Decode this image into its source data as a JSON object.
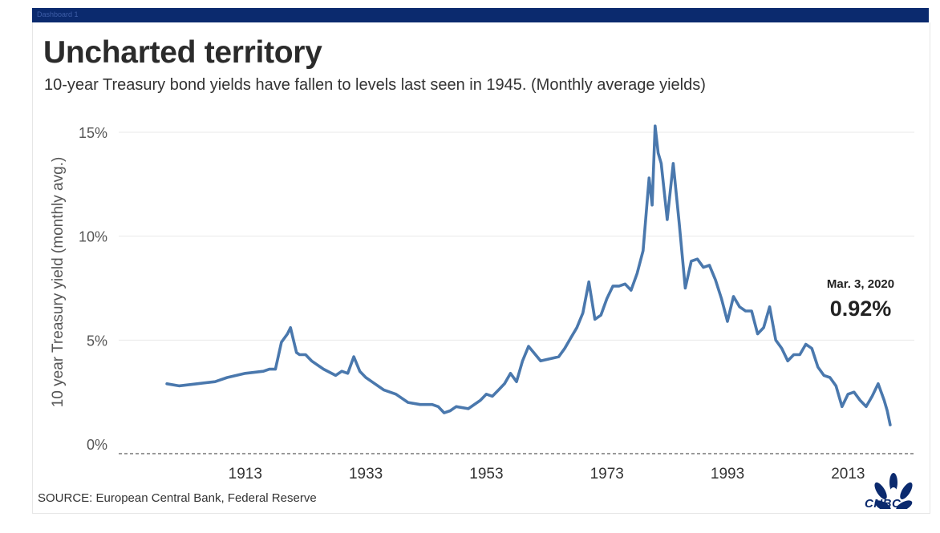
{
  "dashboard_label": "Dashboard 1",
  "header": {
    "title": "Uncharted territory",
    "subtitle": "10-year Treasury bond yields have fallen to levels last seen in 1945. (Monthly average yields)"
  },
  "source": "SOURCE: European Central Bank, Federal Reserve",
  "logo": {
    "text": "CNBC"
  },
  "colors": {
    "line": "#4a78ad",
    "topbar": "#0b2a6e",
    "grid": "#e9e9e9"
  },
  "chart_data": {
    "type": "line",
    "title": "Uncharted territory",
    "ylabel": "10 year Treasury yield (monthly avg.)",
    "xlabel": "",
    "xlim": [
      1892,
      2024
    ],
    "ylim": [
      0,
      16
    ],
    "x_ticks": [
      1913,
      1933,
      1953,
      1973,
      1993,
      2013
    ],
    "x_tick_labels": [
      "1913",
      "1933",
      "1953",
      "1973",
      "1993",
      "2013"
    ],
    "y_ticks": [
      0,
      5,
      10,
      15
    ],
    "y_tick_labels": [
      "0%",
      "5%",
      "10%",
      "15%"
    ],
    "annotation": {
      "date": "Mar. 3, 2020",
      "value": "0.92%"
    },
    "series": [
      {
        "name": "10-year Treasury yield",
        "x": [
          1900,
          1902,
          1905,
          1908,
          1910,
          1913,
          1916,
          1917,
          1918,
          1919,
          1920,
          1920.5,
          1921,
          1921.5,
          1922,
          1923,
          1924,
          1925,
          1926,
          1928,
          1929,
          1930,
          1931,
          1932,
          1933,
          1934,
          1936,
          1938,
          1940,
          1942,
          1944,
          1945,
          1946,
          1947,
          1948,
          1950,
          1952,
          1953,
          1954,
          1955,
          1956,
          1957,
          1958,
          1959,
          1960,
          1962,
          1965,
          1966,
          1967,
          1968,
          1969,
          1970,
          1971,
          1972,
          1973,
          1974,
          1975,
          1976,
          1977,
          1978,
          1979,
          1980,
          1980.5,
          1981,
          1981.5,
          1982,
          1983,
          1984,
          1985,
          1986,
          1987,
          1988,
          1989,
          1990,
          1991,
          1992,
          1993,
          1994,
          1995,
          1996,
          1997,
          1998,
          1999,
          2000,
          2001,
          2002,
          2003,
          2004,
          2005,
          2006,
          2007,
          2008,
          2009,
          2010,
          2011,
          2012,
          2013,
          2014,
          2015,
          2016,
          2017,
          2018,
          2019,
          2019.5,
          2020
        ],
        "y": [
          2.9,
          2.8,
          2.9,
          3.0,
          3.2,
          3.4,
          3.5,
          3.6,
          3.6,
          4.9,
          5.3,
          5.6,
          5.0,
          4.4,
          4.3,
          4.3,
          4.0,
          3.8,
          3.6,
          3.3,
          3.5,
          3.4,
          4.2,
          3.5,
          3.2,
          3.0,
          2.6,
          2.4,
          2.0,
          1.9,
          1.9,
          1.8,
          1.5,
          1.6,
          1.8,
          1.7,
          2.1,
          2.4,
          2.3,
          2.6,
          2.9,
          3.4,
          3.0,
          4.0,
          4.7,
          4.0,
          4.2,
          4.6,
          5.1,
          5.6,
          6.3,
          7.8,
          6.0,
          6.2,
          7.0,
          7.6,
          7.6,
          7.7,
          7.4,
          8.2,
          9.3,
          12.8,
          11.5,
          15.3,
          14.0,
          13.5,
          10.8,
          13.5,
          10.6,
          7.5,
          8.8,
          8.9,
          8.5,
          8.6,
          7.9,
          7.0,
          5.9,
          7.1,
          6.6,
          6.4,
          6.4,
          5.3,
          5.6,
          6.6,
          5.0,
          4.6,
          4.0,
          4.3,
          4.3,
          4.8,
          4.6,
          3.7,
          3.3,
          3.2,
          2.8,
          1.8,
          2.4,
          2.5,
          2.1,
          1.8,
          2.3,
          2.9,
          2.1,
          1.6,
          0.92
        ]
      }
    ]
  }
}
